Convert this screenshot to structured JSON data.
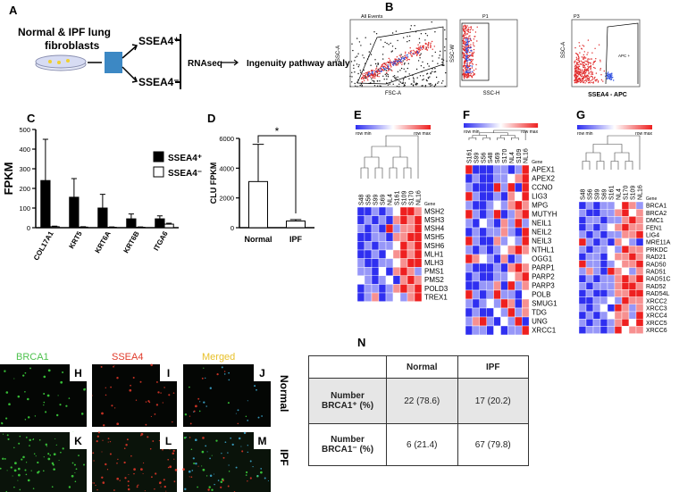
{
  "schematic": {
    "label": "A",
    "title_lines": [
      "Normal & IPF lung",
      "fibroblasts"
    ],
    "branch_top": "SSEA4⁺",
    "branch_bottom": "SSEA4⁻",
    "step": "RNAseq",
    "result": "Ingenuity pathway analysis"
  },
  "flow": {
    "label": "B",
    "plots": [
      {
        "title": "All Events",
        "xlabel": "FSC-A",
        "ylabel": "SSC-A"
      },
      {
        "title": "P1",
        "xlabel": "SSC-H",
        "ylabel": "SSC-W"
      },
      {
        "title": "P3",
        "xlabel": "SSEA4 - APC",
        "ylabel": "SSC-A",
        "gate": "APC +"
      }
    ]
  },
  "chart_data": [
    {
      "type": "bar",
      "label": "C",
      "ylabel": "FPKM",
      "categories": [
        "COL17A1",
        "KRT5",
        "KRT6A",
        "KRT6B",
        "ITGA6"
      ],
      "series": [
        {
          "name": "SSEA4⁺",
          "color": "#000000",
          "values": [
            240,
            155,
            100,
            45,
            45
          ],
          "errors": [
            210,
            95,
            70,
            25,
            15
          ]
        },
        {
          "name": "SSEA4⁻",
          "color": "#ffffff",
          "values": [
            5,
            3,
            2,
            2,
            18
          ],
          "errors": [
            3,
            2,
            2,
            2,
            5
          ]
        }
      ],
      "ylim": [
        0,
        500
      ],
      "yticks": [
        0,
        100,
        200,
        300,
        400,
        500
      ]
    },
    {
      "type": "bar",
      "label": "D",
      "ylabel": "CLU FPKM",
      "annotation": "*",
      "categories": [
        "Normal",
        "IPF"
      ],
      "series": [
        {
          "color": "#ffffff",
          "values": [
            3100,
            450
          ],
          "errors": [
            2500,
            100
          ]
        }
      ],
      "ylim": [
        0,
        6000
      ],
      "yticks": [
        0,
        2000,
        4000,
        6000
      ]
    },
    {
      "type": "heatmap",
      "label": "E",
      "legend_min": "row min",
      "legend_max": "row max",
      "row_header": "Gene",
      "zlim": [
        -1,
        1
      ],
      "columns": [
        "S48",
        "S56",
        "S99",
        "S69",
        "NL4",
        "S161",
        "S109",
        "S170",
        "NL16"
      ],
      "rows": [
        "MSH2",
        "MSH3",
        "MSH4",
        "MSH5",
        "MSH6",
        "MLH1",
        "MLH3",
        "PMS1",
        "PMS2",
        "POLD3",
        "TREX1"
      ],
      "values": [
        [
          -1,
          -1,
          -0.5,
          -1,
          -0.5,
          0,
          1,
          1,
          0.5
        ],
        [
          -1,
          -0.5,
          -1,
          -0.5,
          -1,
          0.5,
          1,
          0.5,
          1
        ],
        [
          -0.5,
          -1,
          -0.5,
          -1,
          1,
          -0.5,
          0.5,
          0.5,
          1
        ],
        [
          -1,
          -1,
          -0.5,
          -0.5,
          -1,
          0.5,
          0.5,
          1,
          1
        ],
        [
          -1,
          -0.5,
          -1,
          -0.5,
          -0.5,
          0,
          1,
          0.5,
          1
        ],
        [
          -1,
          -1,
          -0.5,
          -1,
          0,
          0.5,
          1,
          0.5,
          1
        ],
        [
          -0.5,
          -1,
          -1,
          -0.5,
          -0.5,
          0,
          0.5,
          1,
          1
        ],
        [
          -0.5,
          -0.5,
          -1,
          0,
          -1,
          0.5,
          1,
          0.5,
          -0.5
        ],
        [
          0,
          -0.5,
          -1,
          -0.5,
          0,
          -1,
          0.5,
          1,
          0.5
        ],
        [
          -1,
          -0.5,
          -0.5,
          -1,
          -0.5,
          0.5,
          1,
          0.5,
          1
        ],
        [
          -1,
          -0.5,
          0.5,
          -1,
          -0.5,
          0,
          -0.5,
          0.5,
          1
        ]
      ]
    },
    {
      "type": "heatmap",
      "label": "F",
      "legend_min": "row min",
      "legend_max": "row max",
      "row_header": "Gene",
      "zlim": [
        -1,
        1
      ],
      "columns": [
        "S161",
        "S99",
        "S56",
        "S48",
        "S69",
        "S170",
        "NL4",
        "S109",
        "NL16"
      ],
      "rows": [
        "APEX1",
        "APEX2",
        "CCNO",
        "LIG3",
        "MPG",
        "MUTYH",
        "NEIL1",
        "NEIL2",
        "NEIL3",
        "NTHL1",
        "OGG1",
        "PARP1",
        "PARP2",
        "PARP3",
        "POLB",
        "SMUG1",
        "TDG",
        "UNG",
        "XRCC1"
      ],
      "values": [
        [
          1,
          -1,
          -1,
          -1,
          -0.5,
          -0.5,
          -1,
          -0.5,
          1
        ],
        [
          -1,
          -0.5,
          -1,
          -1,
          -0.5,
          -0.5,
          0,
          0.5,
          1
        ],
        [
          -0.5,
          -1,
          -1,
          -1,
          1,
          -0.5,
          1,
          -1,
          1
        ],
        [
          1,
          -0.5,
          -1,
          -1,
          -0.5,
          -1,
          0.5,
          0,
          1
        ],
        [
          -0.5,
          -1,
          -1,
          -0.5,
          0,
          -0.5,
          0.5,
          1,
          0.5
        ],
        [
          1,
          -0.5,
          -1,
          -0.5,
          1,
          -1,
          -0.5,
          0.5,
          1
        ],
        [
          -0.5,
          -1,
          0,
          -0.5,
          -1,
          0.5,
          -0.5,
          1,
          -0.5
        ],
        [
          -1,
          -0.5,
          -1,
          -0.5,
          -0.5,
          0.5,
          -0.5,
          -1,
          1
        ],
        [
          1,
          -0.5,
          -1,
          -1,
          0.5,
          -0.5,
          0,
          -0.5,
          1
        ],
        [
          -0.5,
          -1,
          -0.5,
          -1,
          -0.5,
          0,
          0.5,
          1,
          0.5
        ],
        [
          1,
          0.5,
          0,
          -0.5,
          -1,
          0.5,
          -1,
          -0.5,
          0
        ],
        [
          -0.5,
          -1,
          -1,
          -1,
          -0.5,
          -1,
          0.5,
          1,
          0.5
        ],
        [
          -1,
          -0.5,
          -1,
          -1,
          -0.5,
          -0.5,
          0,
          0.5,
          1
        ],
        [
          -1,
          -1,
          -0.5,
          -0.5,
          0.5,
          -1,
          1,
          -0.5,
          0.5
        ],
        [
          1,
          -0.5,
          -1,
          -0.5,
          1,
          -0.5,
          -0.5,
          -1,
          0
        ],
        [
          -0.5,
          -1,
          -0.5,
          0,
          -0.5,
          1,
          0.5,
          -1,
          0.5
        ],
        [
          -1,
          -0.5,
          -1,
          -1,
          0,
          -0.5,
          1,
          -0.5,
          0.5
        ],
        [
          -0.5,
          0.5,
          1,
          -0.5,
          -1,
          0,
          -0.5,
          1,
          -1
        ],
        [
          -1,
          -0.5,
          -0.5,
          -1,
          0,
          -1,
          -0.5,
          -0.5,
          1
        ]
      ]
    },
    {
      "type": "heatmap",
      "label": "G",
      "legend_min": "row min",
      "legend_max": "row max",
      "row_header": "Gene",
      "zlim": [
        -1,
        1
      ],
      "columns": [
        "S48",
        "S56",
        "S99",
        "S69",
        "S161",
        "NL4",
        "S170",
        "S109",
        "NL16"
      ],
      "rows": [
        "BRCA1",
        "BRCA2",
        "DMC1",
        "FEN1",
        "LIG4",
        "MRE11A",
        "PRKDC",
        "RAD21",
        "RAD50",
        "RAD51",
        "RAD51C",
        "RAD52",
        "RAD54L",
        "XRCC2",
        "XRCC3",
        "XRCC4",
        "XRCC5",
        "XRCC6"
      ],
      "values": [
        [
          -1,
          -0.5,
          -1,
          -0.5,
          -0.5,
          0,
          1,
          0.5,
          -0.5
        ],
        [
          -0.5,
          -1,
          -1,
          -0.5,
          -0.5,
          0.5,
          1,
          0,
          0.5
        ],
        [
          -1,
          -0.5,
          -0.5,
          -1,
          -0.5,
          -0.5,
          0.5,
          1,
          0.5
        ],
        [
          -1,
          -0.5,
          -1,
          -0.5,
          0,
          0.5,
          1,
          0.5,
          0.5
        ],
        [
          -0.5,
          -1,
          -0.5,
          -1,
          -0.5,
          -0.5,
          0.5,
          0.5,
          1
        ],
        [
          1,
          -0.5,
          -1,
          -0.5,
          -1,
          0.5,
          0,
          -0.5,
          -1
        ],
        [
          -0.5,
          -1,
          -0.5,
          -0.5,
          0,
          -0.5,
          1,
          0.5,
          0.5
        ],
        [
          -1,
          -0.5,
          -0.5,
          -1,
          0,
          0.5,
          0.5,
          1,
          0.5
        ],
        [
          1,
          -0.5,
          -0.5,
          -1,
          -0.5,
          0,
          0.5,
          0.5,
          1
        ],
        [
          -0.5,
          0.5,
          -0.5,
          -1,
          1,
          0.5,
          0,
          -0.5,
          0.5
        ],
        [
          -1,
          -0.5,
          -1,
          -0.5,
          -0.5,
          0.5,
          1,
          0.5,
          1
        ],
        [
          -0.5,
          -1,
          -0.5,
          -0.5,
          -0.5,
          0.5,
          1,
          1,
          0.5
        ],
        [
          -1,
          -0.5,
          -1,
          -1,
          -0.5,
          0.5,
          0.5,
          1,
          1
        ],
        [
          -1,
          -1,
          -0.5,
          -0.5,
          0,
          -0.5,
          1,
          0.5,
          0.5
        ],
        [
          -0.5,
          -1,
          -0.5,
          0,
          -1,
          1,
          0.5,
          -0.5,
          0.5
        ],
        [
          -1,
          -0.5,
          -1,
          -0.5,
          0,
          0.5,
          0.5,
          -0.5,
          1
        ],
        [
          -0.5,
          -1,
          -0.5,
          -1,
          -0.5,
          0.5,
          1,
          0,
          1
        ],
        [
          -1,
          -0.5,
          -0.5,
          -1,
          -0.5,
          1,
          0,
          0.5,
          0.5
        ]
      ]
    }
  ],
  "microscopy": {
    "stains": [
      "BRCA1",
      "SSEA4",
      "Merged"
    ],
    "conditions": [
      "Normal",
      "IPF"
    ],
    "panels": [
      "H",
      "I",
      "J",
      "K",
      "L",
      "M"
    ]
  },
  "table": {
    "label": "N",
    "columns": [
      "Normal",
      "IPF"
    ],
    "rows": [
      {
        "label": "Number BRCA1⁺ (%)",
        "cells": [
          "22 (78.6)",
          "17 (20.2)"
        ]
      },
      {
        "label": "Number BRCA1⁻ (%)",
        "cells": [
          "6 (21.4)",
          "67 (79.8)"
        ]
      }
    ]
  }
}
